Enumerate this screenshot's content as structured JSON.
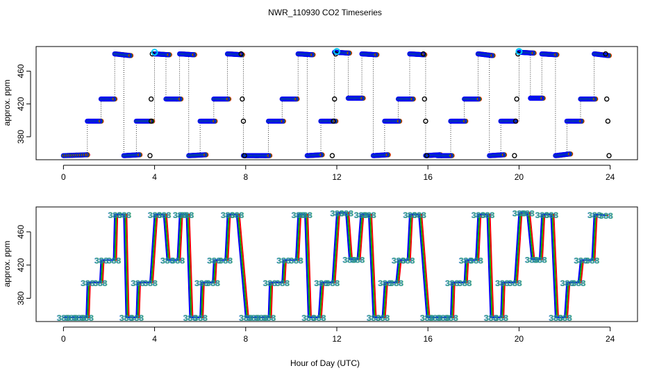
{
  "title": "NWR_110930  CO2 Timeseries",
  "xlabel": "Hour of Day (UTC)",
  "chart_data": [
    {
      "type": "scatter",
      "ylabel": "approx. ppm",
      "xlim": [
        -1.2,
        25.2
      ],
      "ylim": [
        352,
        490
      ],
      "xticks": [
        0,
        4,
        8,
        12,
        16,
        20,
        24
      ],
      "yticks": [
        380,
        420,
        460
      ],
      "grid": false,
      "series_colors": [
        "#0000ff",
        "#00aa00",
        "#ff0000",
        "#00ccff",
        "#000000"
      ],
      "segments": [
        {
          "x": [
            0.0,
            1.0
          ],
          "y": [
            357,
            358
          ]
        },
        {
          "x": [
            1.05,
            1.6
          ],
          "y": [
            399,
            399
          ]
        },
        {
          "x": [
            1.65,
            2.2
          ],
          "y": [
            426,
            426
          ]
        },
        {
          "x": [
            2.25,
            2.9
          ],
          "y": [
            481,
            479
          ]
        },
        {
          "x": [
            2.65,
            3.3
          ],
          "y": [
            357,
            358
          ]
        },
        {
          "x": [
            3.2,
            3.85
          ],
          "y": [
            399,
            399
          ]
        },
        {
          "x": [
            4.0,
            4.6
          ],
          "y": [
            481,
            480
          ]
        },
        {
          "x": [
            4.5,
            5.1
          ],
          "y": [
            426,
            426
          ]
        },
        {
          "x": [
            5.1,
            5.7
          ],
          "y": [
            481,
            480
          ]
        },
        {
          "x": [
            5.5,
            6.2
          ],
          "y": [
            357,
            358
          ]
        },
        {
          "x": [
            6.0,
            6.6
          ],
          "y": [
            399,
            399
          ]
        },
        {
          "x": [
            6.6,
            7.2
          ],
          "y": [
            426,
            426
          ]
        },
        {
          "x": [
            7.2,
            7.8
          ],
          "y": [
            481,
            480
          ]
        },
        {
          "x": [
            7.9,
            8.5
          ],
          "y": [
            357,
            357
          ]
        },
        {
          "x": [
            8.4,
            9.0
          ],
          "y": [
            357,
            357
          ]
        },
        {
          "x": [
            9.0,
            9.6
          ],
          "y": [
            399,
            399
          ]
        },
        {
          "x": [
            9.6,
            10.2
          ],
          "y": [
            426,
            426
          ]
        },
        {
          "x": [
            10.3,
            10.9
          ],
          "y": [
            481,
            480
          ]
        },
        {
          "x": [
            10.7,
            11.3
          ],
          "y": [
            357,
            358
          ]
        },
        {
          "x": [
            11.3,
            11.9
          ],
          "y": [
            399,
            399
          ]
        },
        {
          "x": [
            11.9,
            12.5
          ],
          "y": [
            483,
            482
          ]
        },
        {
          "x": [
            12.5,
            13.1
          ],
          "y": [
            427,
            427
          ]
        },
        {
          "x": [
            13.1,
            13.7
          ],
          "y": [
            481,
            480
          ]
        },
        {
          "x": [
            13.6,
            14.2
          ],
          "y": [
            357,
            358
          ]
        },
        {
          "x": [
            14.1,
            14.7
          ],
          "y": [
            399,
            399
          ]
        },
        {
          "x": [
            14.7,
            15.3
          ],
          "y": [
            426,
            426
          ]
        },
        {
          "x": [
            15.2,
            15.8
          ],
          "y": [
            481,
            480
          ]
        },
        {
          "x": [
            15.9,
            16.5
          ],
          "y": [
            357,
            358
          ]
        },
        {
          "x": [
            16.4,
            17.0
          ],
          "y": [
            357,
            357
          ]
        },
        {
          "x": [
            17.0,
            17.6
          ],
          "y": [
            399,
            399
          ]
        },
        {
          "x": [
            17.6,
            18.2
          ],
          "y": [
            426,
            426
          ]
        },
        {
          "x": [
            18.2,
            18.8
          ],
          "y": [
            481,
            479
          ]
        },
        {
          "x": [
            18.7,
            19.3
          ],
          "y": [
            357,
            358
          ]
        },
        {
          "x": [
            19.2,
            19.8
          ],
          "y": [
            399,
            399
          ]
        },
        {
          "x": [
            20.0,
            20.6
          ],
          "y": [
            483,
            482
          ]
        },
        {
          "x": [
            20.5,
            21.0
          ],
          "y": [
            427,
            427
          ]
        },
        {
          "x": [
            21.0,
            21.6
          ],
          "y": [
            481,
            480
          ]
        },
        {
          "x": [
            21.6,
            22.2
          ],
          "y": [
            357,
            359
          ]
        },
        {
          "x": [
            22.1,
            22.7
          ],
          "y": [
            399,
            399
          ]
        },
        {
          "x": [
            22.7,
            23.3
          ],
          "y": [
            426,
            426
          ]
        },
        {
          "x": [
            23.3,
            23.9
          ],
          "y": [
            481,
            479
          ]
        }
      ],
      "black_points": [
        {
          "x": 3.8,
          "y": 357
        },
        {
          "x": 3.85,
          "y": 399
        },
        {
          "x": 3.85,
          "y": 426
        },
        {
          "x": 3.9,
          "y": 481
        },
        {
          "x": 7.8,
          "y": 481
        },
        {
          "x": 7.85,
          "y": 426
        },
        {
          "x": 7.9,
          "y": 399
        },
        {
          "x": 7.95,
          "y": 357
        },
        {
          "x": 11.8,
          "y": 357
        },
        {
          "x": 11.85,
          "y": 399
        },
        {
          "x": 11.9,
          "y": 426
        },
        {
          "x": 11.95,
          "y": 481
        },
        {
          "x": 15.8,
          "y": 481
        },
        {
          "x": 15.85,
          "y": 426
        },
        {
          "x": 15.9,
          "y": 399
        },
        {
          "x": 15.95,
          "y": 357
        },
        {
          "x": 19.8,
          "y": 357
        },
        {
          "x": 19.85,
          "y": 399
        },
        {
          "x": 19.9,
          "y": 426
        },
        {
          "x": 19.95,
          "y": 481
        },
        {
          "x": 23.8,
          "y": 481
        },
        {
          "x": 23.85,
          "y": 426
        },
        {
          "x": 23.9,
          "y": 399
        },
        {
          "x": 23.95,
          "y": 357
        }
      ],
      "cyan_points": [
        {
          "x": 4.0,
          "y": 483
        },
        {
          "x": 12.0,
          "y": 484
        },
        {
          "x": 20.0,
          "y": 484
        }
      ]
    },
    {
      "type": "line",
      "ylabel": "approx. ppm",
      "xlim": [
        -1.2,
        25.2
      ],
      "ylim": [
        352,
        490
      ],
      "xticks": [
        0,
        4,
        8,
        12,
        16,
        20,
        24
      ],
      "yticks": [
        380,
        420,
        460
      ],
      "grid": false,
      "series_colors": [
        "#ff0000",
        "#00aa00",
        "#0000ff"
      ],
      "marker_text": "388",
      "path": [
        {
          "x": 0.0,
          "y": 357
        },
        {
          "x": 1.0,
          "y": 357
        },
        {
          "x": 1.05,
          "y": 399
        },
        {
          "x": 1.6,
          "y": 399
        },
        {
          "x": 1.65,
          "y": 426
        },
        {
          "x": 2.2,
          "y": 426
        },
        {
          "x": 2.25,
          "y": 481
        },
        {
          "x": 2.65,
          "y": 481
        },
        {
          "x": 2.75,
          "y": 357
        },
        {
          "x": 3.2,
          "y": 357
        },
        {
          "x": 3.25,
          "y": 399
        },
        {
          "x": 3.8,
          "y": 399
        },
        {
          "x": 4.0,
          "y": 481
        },
        {
          "x": 4.4,
          "y": 481
        },
        {
          "x": 4.55,
          "y": 426
        },
        {
          "x": 5.0,
          "y": 426
        },
        {
          "x": 5.1,
          "y": 481
        },
        {
          "x": 5.4,
          "y": 481
        },
        {
          "x": 5.55,
          "y": 357
        },
        {
          "x": 6.0,
          "y": 357
        },
        {
          "x": 6.05,
          "y": 399
        },
        {
          "x": 6.55,
          "y": 399
        },
        {
          "x": 6.6,
          "y": 426
        },
        {
          "x": 7.1,
          "y": 426
        },
        {
          "x": 7.2,
          "y": 481
        },
        {
          "x": 7.6,
          "y": 481
        },
        {
          "x": 8.0,
          "y": 357
        },
        {
          "x": 9.0,
          "y": 357
        },
        {
          "x": 9.05,
          "y": 399
        },
        {
          "x": 9.6,
          "y": 399
        },
        {
          "x": 9.65,
          "y": 426
        },
        {
          "x": 10.2,
          "y": 426
        },
        {
          "x": 10.3,
          "y": 481
        },
        {
          "x": 10.6,
          "y": 481
        },
        {
          "x": 10.75,
          "y": 357
        },
        {
          "x": 11.2,
          "y": 357
        },
        {
          "x": 11.3,
          "y": 399
        },
        {
          "x": 11.8,
          "y": 399
        },
        {
          "x": 12.0,
          "y": 483
        },
        {
          "x": 12.4,
          "y": 483
        },
        {
          "x": 12.55,
          "y": 427
        },
        {
          "x": 12.9,
          "y": 427
        },
        {
          "x": 13.05,
          "y": 481
        },
        {
          "x": 13.4,
          "y": 481
        },
        {
          "x": 13.6,
          "y": 357
        },
        {
          "x": 14.0,
          "y": 357
        },
        {
          "x": 14.1,
          "y": 399
        },
        {
          "x": 14.6,
          "y": 399
        },
        {
          "x": 14.7,
          "y": 426
        },
        {
          "x": 15.1,
          "y": 426
        },
        {
          "x": 15.2,
          "y": 481
        },
        {
          "x": 15.6,
          "y": 481
        },
        {
          "x": 15.95,
          "y": 357
        },
        {
          "x": 17.0,
          "y": 357
        },
        {
          "x": 17.05,
          "y": 399
        },
        {
          "x": 17.6,
          "y": 399
        },
        {
          "x": 17.65,
          "y": 426
        },
        {
          "x": 18.1,
          "y": 426
        },
        {
          "x": 18.2,
          "y": 481
        },
        {
          "x": 18.6,
          "y": 481
        },
        {
          "x": 18.75,
          "y": 357
        },
        {
          "x": 19.2,
          "y": 357
        },
        {
          "x": 19.25,
          "y": 399
        },
        {
          "x": 19.8,
          "y": 399
        },
        {
          "x": 20.0,
          "y": 483
        },
        {
          "x": 20.35,
          "y": 483
        },
        {
          "x": 20.55,
          "y": 427
        },
        {
          "x": 20.9,
          "y": 427
        },
        {
          "x": 21.0,
          "y": 481
        },
        {
          "x": 21.4,
          "y": 481
        },
        {
          "x": 21.6,
          "y": 357
        },
        {
          "x": 22.0,
          "y": 357
        },
        {
          "x": 22.1,
          "y": 399
        },
        {
          "x": 22.6,
          "y": 399
        },
        {
          "x": 22.7,
          "y": 426
        },
        {
          "x": 23.2,
          "y": 426
        },
        {
          "x": 23.3,
          "y": 481
        },
        {
          "x": 23.8,
          "y": 480
        }
      ]
    }
  ]
}
